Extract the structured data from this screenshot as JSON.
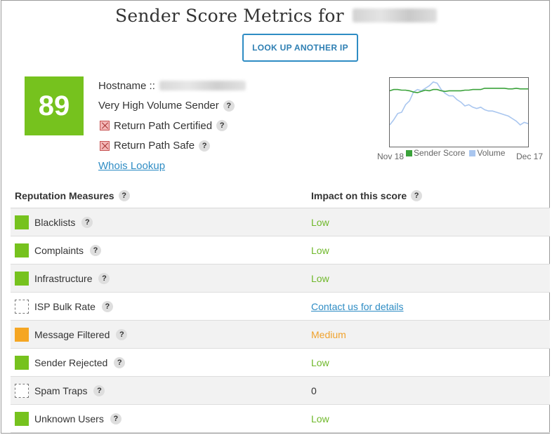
{
  "header": {
    "title": "Sender Score Metrics for",
    "lookup_button": "LOOK UP ANOTHER IP"
  },
  "score": {
    "value": "89",
    "color": "#76c21e"
  },
  "info": {
    "hostname_label": "Hostname ::",
    "volume_label": "Very High Volume Sender",
    "certified_label": "Return Path Certified",
    "safe_label": "Return Path Safe",
    "whois_label": "Whois Lookup",
    "help_glyph": "?"
  },
  "chart_data": {
    "type": "line",
    "x_start_label": "Nov 18",
    "x_end_label": "Dec 17",
    "series": [
      {
        "name": "Sender Score",
        "color": "#3aa23a",
        "values": [
          84,
          86,
          86,
          85,
          85,
          84,
          82,
          81,
          83,
          85,
          84,
          86,
          86,
          84,
          83,
          84,
          84,
          84,
          84,
          85,
          85,
          86,
          86,
          86,
          88,
          88,
          88,
          88,
          88,
          88,
          87,
          87,
          88,
          87,
          87,
          87
        ]
      },
      {
        "name": "Volume",
        "color": "#a9c6ef",
        "values": [
          30,
          38,
          48,
          50,
          62,
          68,
          82,
          86,
          84,
          88,
          92,
          98,
          96,
          86,
          80,
          76,
          76,
          70,
          66,
          60,
          62,
          58,
          56,
          58,
          54,
          52,
          52,
          50,
          48,
          46,
          44,
          40,
          36,
          30,
          34,
          32
        ]
      }
    ]
  },
  "table": {
    "col1_header": "Reputation Measures",
    "col2_header": "Impact on this score",
    "rows": [
      {
        "label": "Blacklists",
        "impact": "Low",
        "status": "green",
        "impact_style": "low"
      },
      {
        "label": "Complaints",
        "impact": "Low",
        "status": "green",
        "impact_style": "low"
      },
      {
        "label": "Infrastructure",
        "impact": "Low",
        "status": "green",
        "impact_style": "low"
      },
      {
        "label": "ISP Bulk Rate",
        "impact": "Contact us for details",
        "status": "empty",
        "impact_style": "link"
      },
      {
        "label": "Message Filtered",
        "impact": "Medium",
        "status": "orange",
        "impact_style": "medium"
      },
      {
        "label": "Sender Rejected",
        "impact": "Low",
        "status": "green",
        "impact_style": "low"
      },
      {
        "label": "Spam Traps",
        "impact": "0",
        "status": "empty",
        "impact_style": "plain"
      },
      {
        "label": "Unknown Users",
        "impact": "Low",
        "status": "green",
        "impact_style": "low"
      }
    ]
  }
}
